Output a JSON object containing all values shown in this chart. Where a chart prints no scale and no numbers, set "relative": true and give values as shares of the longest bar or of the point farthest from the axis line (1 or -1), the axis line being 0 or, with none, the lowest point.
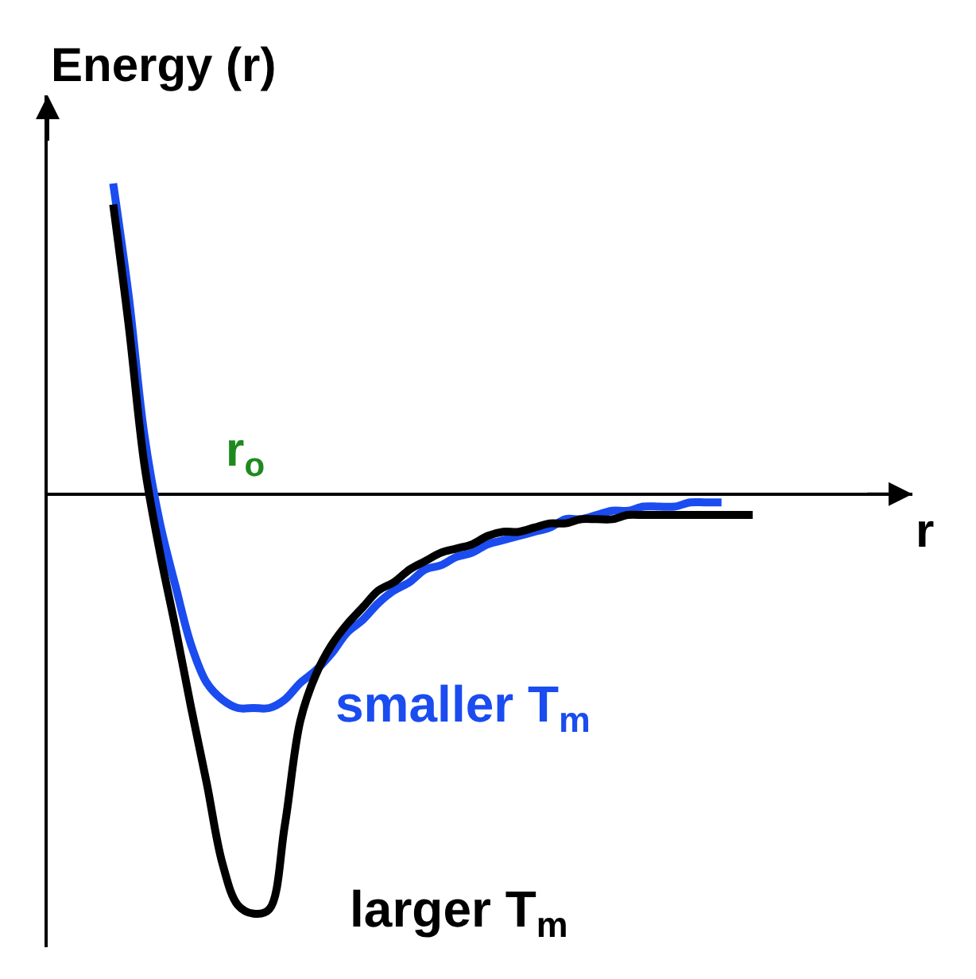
{
  "chart_data": {
    "type": "line",
    "relative": true,
    "xlabel": "r",
    "ylabel": "Energy (r)",
    "categories": [
      null,
      null,
      null,
      null,
      null,
      null,
      null,
      null,
      null,
      null,
      null,
      null,
      null,
      null,
      null,
      null,
      null,
      null,
      null,
      null,
      null,
      null,
      null,
      null,
      null,
      null,
      null,
      null,
      null,
      null,
      null,
      null,
      null,
      null,
      null,
      null,
      null,
      null,
      null,
      null,
      null,
      null
    ],
    "series": [
      {
        "name": "smaller T$_{m}$",
        "color": "#1a4cf0",
        "values": [
          0.74,
          0.47,
          0.14,
          -0.07,
          -0.22,
          -0.36,
          -0.45,
          -0.49,
          -0.51,
          -0.51,
          -0.51,
          -0.49,
          -0.45,
          -0.42,
          -0.38,
          -0.33,
          -0.3,
          -0.26,
          -0.23,
          -0.21,
          -0.18,
          -0.17,
          -0.15,
          -0.14,
          -0.12,
          -0.11,
          -0.1,
          -0.09,
          -0.08,
          -0.06,
          -0.06,
          -0.05,
          -0.04,
          -0.04,
          -0.03,
          -0.03,
          -0.03,
          -0.02,
          -0.02,
          -0.02,
          null,
          null
        ]
      },
      {
        "name": "larger T$_{m}$",
        "color": "#000000",
        "values": [
          0.69,
          0.4,
          0.07,
          -0.14,
          -0.32,
          -0.51,
          -0.69,
          -0.88,
          -0.98,
          -1,
          -0.99,
          -0.79,
          -0.54,
          -0.43,
          -0.36,
          -0.31,
          -0.27,
          -0.23,
          -0.21,
          -0.18,
          -0.16,
          -0.14,
          -0.13,
          -0.12,
          -0.1,
          -0.09,
          -0.09,
          -0.08,
          -0.07,
          -0.07,
          -0.06,
          -0.06,
          -0.06,
          -0.05,
          -0.05,
          -0.05,
          -0.05,
          -0.05,
          -0.05,
          -0.05,
          -0.05,
          -0.05
        ]
      }
    ],
    "annotations": [
      "r$_{o}$"
    ],
    "legend": false,
    "marker": "none",
    "line_style": "solid"
  }
}
